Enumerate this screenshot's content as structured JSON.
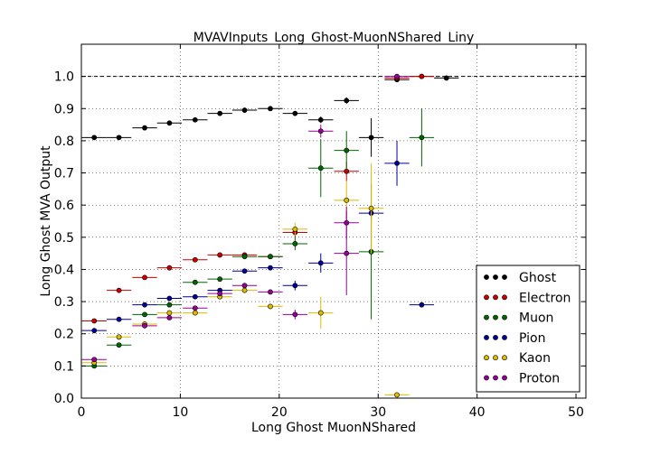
{
  "chart_data": {
    "type": "scatter",
    "title": "MVAVInputs_Long_Ghost-MuonNShared_Liny",
    "xlabel": "Long Ghost MuonNShared",
    "ylabel": "Long Ghost MVA Output",
    "xlim": [
      0,
      51
    ],
    "ylim": [
      0,
      1.1
    ],
    "xticks": [
      0,
      10,
      20,
      30,
      40,
      50
    ],
    "yticks": [
      0.0,
      0.1,
      0.2,
      0.3,
      0.4,
      0.5,
      0.6,
      0.7,
      0.8,
      0.9,
      1.0
    ],
    "xtick_labels": [
      "0",
      "10",
      "20",
      "30",
      "40",
      "50"
    ],
    "ytick_labels": [
      "0.0",
      "0.1",
      "0.2",
      "0.3",
      "0.4",
      "0.5",
      "0.6",
      "0.7",
      "0.8",
      "0.9",
      "1.0"
    ],
    "grid": true,
    "reference_line_y": 1.0,
    "bin_half_width": 1.25,
    "legend_position": "lower-right",
    "series": [
      {
        "name": "Ghost",
        "color": "#000000",
        "points": [
          {
            "x": 1.3,
            "y": 0.81,
            "err": 0.004
          },
          {
            "x": 3.8,
            "y": 0.81,
            "err": 0.004
          },
          {
            "x": 6.4,
            "y": 0.84,
            "err": 0.004
          },
          {
            "x": 8.9,
            "y": 0.855,
            "err": 0.004
          },
          {
            "x": 11.5,
            "y": 0.865,
            "err": 0.004
          },
          {
            "x": 14.0,
            "y": 0.885,
            "err": 0.004
          },
          {
            "x": 16.5,
            "y": 0.895,
            "err": 0.004
          },
          {
            "x": 19.1,
            "y": 0.9,
            "err": 0.004
          },
          {
            "x": 21.6,
            "y": 0.885,
            "err": 0.005
          },
          {
            "x": 24.2,
            "y": 0.865,
            "err": 0.01
          },
          {
            "x": 26.8,
            "y": 0.925,
            "err": 0.01
          },
          {
            "x": 29.3,
            "y": 0.81,
            "err": 0.06
          },
          {
            "x": 31.9,
            "y": 0.99,
            "err": 0.005
          },
          {
            "x": 34.4,
            "y": 1.0,
            "err": 0.002
          },
          {
            "x": 36.9,
            "y": 0.995,
            "err": 0.002
          }
        ]
      },
      {
        "name": "Electron",
        "color": "#cc0000",
        "points": [
          {
            "x": 1.3,
            "y": 0.24,
            "err": 0.004
          },
          {
            "x": 3.8,
            "y": 0.335,
            "err": 0.004
          },
          {
            "x": 6.4,
            "y": 0.375,
            "err": 0.004
          },
          {
            "x": 8.9,
            "y": 0.405,
            "err": 0.004
          },
          {
            "x": 11.5,
            "y": 0.43,
            "err": 0.004
          },
          {
            "x": 14.0,
            "y": 0.445,
            "err": 0.004
          },
          {
            "x": 16.5,
            "y": 0.445,
            "err": 0.004
          },
          {
            "x": 19.1,
            "y": 0.44,
            "err": 0.004
          },
          {
            "x": 21.6,
            "y": 0.515,
            "err": 0.015
          },
          {
            "x": 26.8,
            "y": 0.705,
            "err": 0.03
          },
          {
            "x": 31.9,
            "y": 0.995,
            "err": 0.005
          },
          {
            "x": 34.4,
            "y": 1.0,
            "err": 0.003
          }
        ]
      },
      {
        "name": "Muon",
        "color": "#006600",
        "points": [
          {
            "x": 1.3,
            "y": 0.1,
            "err": 0.004
          },
          {
            "x": 3.8,
            "y": 0.165,
            "err": 0.004
          },
          {
            "x": 6.4,
            "y": 0.26,
            "err": 0.004
          },
          {
            "x": 8.9,
            "y": 0.29,
            "err": 0.004
          },
          {
            "x": 11.5,
            "y": 0.36,
            "err": 0.004
          },
          {
            "x": 14.0,
            "y": 0.37,
            "err": 0.004
          },
          {
            "x": 16.5,
            "y": 0.44,
            "err": 0.004
          },
          {
            "x": 19.1,
            "y": 0.44,
            "err": 0.005
          },
          {
            "x": 21.6,
            "y": 0.48,
            "err": 0.02
          },
          {
            "x": 24.2,
            "y": 0.715,
            "err": 0.09
          },
          {
            "x": 26.8,
            "y": 0.77,
            "err": 0.06
          },
          {
            "x": 29.3,
            "y": 0.455,
            "err": 0.21
          },
          {
            "x": 34.4,
            "y": 0.81,
            "err": 0.09
          }
        ]
      },
      {
        "name": "Pion",
        "color": "#000099",
        "points": [
          {
            "x": 1.3,
            "y": 0.21,
            "err": 0.004
          },
          {
            "x": 3.8,
            "y": 0.245,
            "err": 0.004
          },
          {
            "x": 6.4,
            "y": 0.29,
            "err": 0.004
          },
          {
            "x": 8.9,
            "y": 0.31,
            "err": 0.004
          },
          {
            "x": 11.5,
            "y": 0.315,
            "err": 0.004
          },
          {
            "x": 14.0,
            "y": 0.335,
            "err": 0.004
          },
          {
            "x": 16.5,
            "y": 0.395,
            "err": 0.004
          },
          {
            "x": 19.1,
            "y": 0.405,
            "err": 0.005
          },
          {
            "x": 21.6,
            "y": 0.35,
            "err": 0.015
          },
          {
            "x": 24.2,
            "y": 0.42,
            "err": 0.03
          },
          {
            "x": 29.3,
            "y": 0.575,
            "err": 0.02
          },
          {
            "x": 31.9,
            "y": 0.73,
            "err": 0.07
          },
          {
            "x": 34.4,
            "y": 0.29,
            "err": 0.004
          }
        ]
      },
      {
        "name": "Kaon",
        "color": "#ddbb00",
        "points": [
          {
            "x": 1.3,
            "y": 0.11,
            "err": 0.004
          },
          {
            "x": 3.8,
            "y": 0.19,
            "err": 0.004
          },
          {
            "x": 6.4,
            "y": 0.23,
            "err": 0.004
          },
          {
            "x": 8.9,
            "y": 0.265,
            "err": 0.004
          },
          {
            "x": 11.5,
            "y": 0.265,
            "err": 0.004
          },
          {
            "x": 14.0,
            "y": 0.315,
            "err": 0.004
          },
          {
            "x": 16.5,
            "y": 0.335,
            "err": 0.004
          },
          {
            "x": 19.1,
            "y": 0.285,
            "err": 0.005
          },
          {
            "x": 21.6,
            "y": 0.525,
            "err": 0.02
          },
          {
            "x": 24.2,
            "y": 0.265,
            "err": 0.05
          },
          {
            "x": 26.8,
            "y": 0.615,
            "err": 0.06
          },
          {
            "x": 29.3,
            "y": 0.59,
            "err": 0.14
          },
          {
            "x": 31.9,
            "y": 0.01,
            "err": 0.002
          }
        ]
      },
      {
        "name": "Proton",
        "color": "#990099",
        "points": [
          {
            "x": 1.3,
            "y": 0.12,
            "err": 0.004
          },
          {
            "x": 6.4,
            "y": 0.225,
            "err": 0.004
          },
          {
            "x": 8.9,
            "y": 0.25,
            "err": 0.004
          },
          {
            "x": 11.5,
            "y": 0.28,
            "err": 0.004
          },
          {
            "x": 14.0,
            "y": 0.325,
            "err": 0.004
          },
          {
            "x": 16.5,
            "y": 0.35,
            "err": 0.004
          },
          {
            "x": 19.1,
            "y": 0.33,
            "err": 0.005
          },
          {
            "x": 21.6,
            "y": 0.26,
            "err": 0.015
          },
          {
            "x": 24.2,
            "y": 0.83,
            "err": 0.02
          },
          {
            "x": 26.8,
            "y": 0.545,
            "err": 0.05
          },
          {
            "x": 26.8,
            "y": 0.45,
            "err": 0.13
          },
          {
            "x": 31.9,
            "y": 1.0,
            "err": 0.003
          }
        ]
      }
    ]
  }
}
